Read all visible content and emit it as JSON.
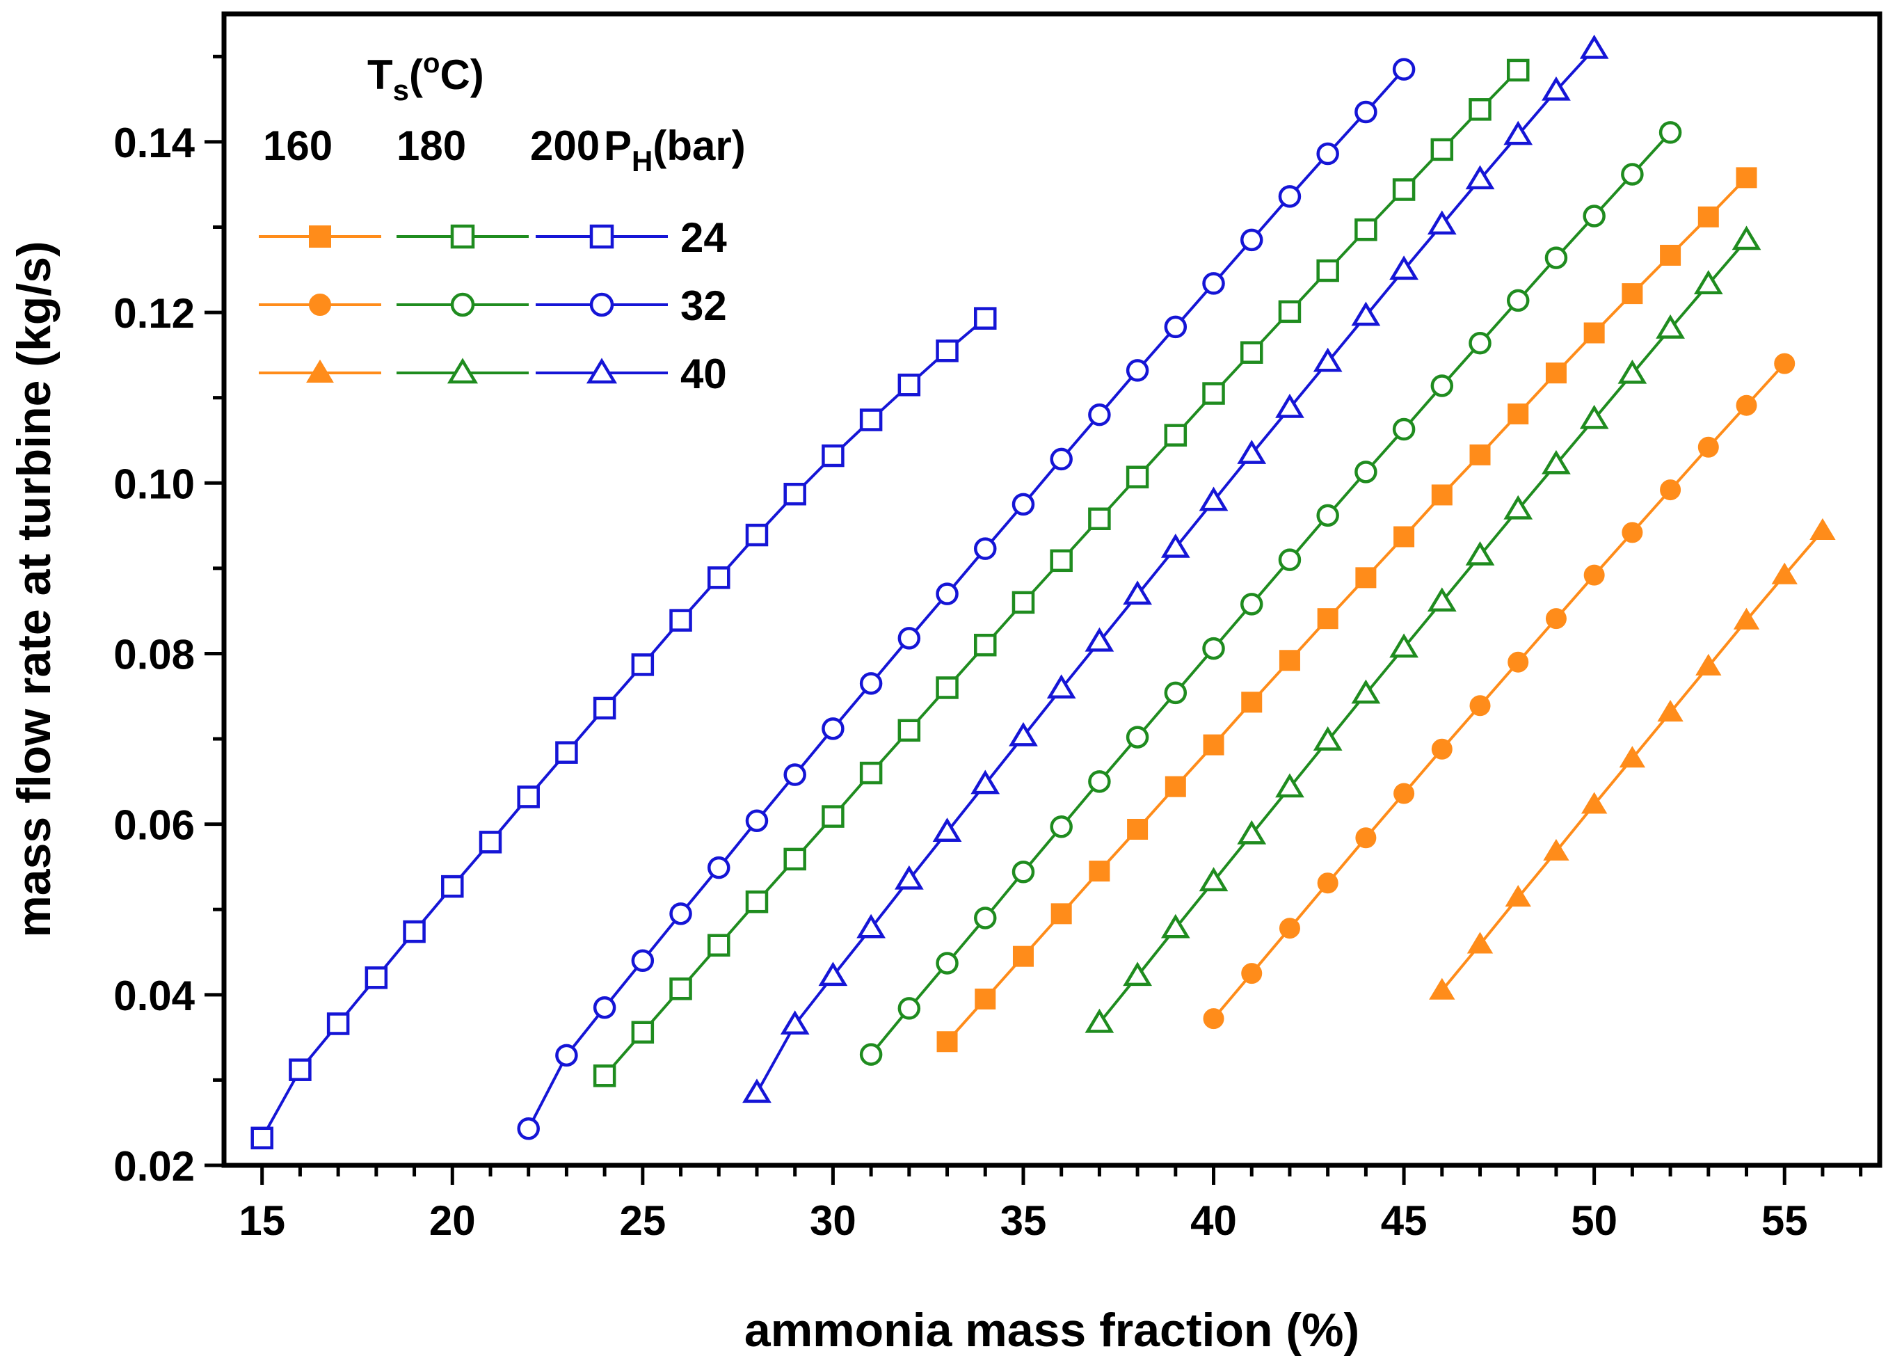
{
  "chart_data": {
    "type": "line",
    "title": "",
    "xlabel": "ammonia mass fraction (%)",
    "ylabel": "mass flow rate at turbine (kg/s)",
    "xlim": [
      14,
      57.5
    ],
    "ylim": [
      0.02,
      0.155
    ],
    "x_ticks": [
      15,
      20,
      25,
      30,
      35,
      40,
      45,
      50,
      55
    ],
    "x_tick_labels": [
      "15",
      "20",
      "25",
      "30",
      "35",
      "40",
      "45",
      "50",
      "55"
    ],
    "y_ticks": [
      0.02,
      0.04,
      0.06,
      0.08,
      0.1,
      0.12,
      0.14
    ],
    "y_tick_labels": [
      "0.02",
      "0.04",
      "0.06",
      "0.08",
      "0.10",
      "0.12",
      "0.14"
    ],
    "grid": false,
    "legend": {
      "placement": "top-left",
      "group_title_main": "T",
      "group_title_sub": "s",
      "group_title_open": "(",
      "group_title_sup": "o",
      "group_title_close": "C)",
      "column_labels": [
        "160",
        "180",
        "200"
      ],
      "pressure_title_main": "P",
      "pressure_title_sub": "H",
      "pressure_title_rest": "(bar)",
      "row_labels": [
        "24",
        "32",
        "40"
      ]
    },
    "colors": {
      "160": "#ff8c1a",
      "180": "#1f8c1f",
      "200": "#1515d6"
    },
    "series": [
      {
        "name": "Ts=160, PH=24",
        "temperature": "160",
        "pressure": "24",
        "marker": "square-filled",
        "x": [
          33,
          34,
          35,
          36,
          37,
          38,
          39,
          40,
          41,
          42,
          43,
          44,
          45,
          46,
          47,
          48,
          49,
          50,
          51,
          52,
          53,
          54
        ],
        "values": [
          0.0345,
          0.0395,
          0.0445,
          0.0495,
          0.0545,
          0.0594,
          0.0644,
          0.0693,
          0.0743,
          0.0792,
          0.0841,
          0.0889,
          0.0937,
          0.0986,
          0.1033,
          0.1081,
          0.1129,
          0.1176,
          0.1222,
          0.1267,
          0.1312,
          0.1358
        ]
      },
      {
        "name": "Ts=160, PH=32",
        "temperature": "160",
        "pressure": "32",
        "marker": "circle-filled",
        "x": [
          40,
          41,
          42,
          43,
          44,
          45,
          46,
          47,
          48,
          49,
          50,
          51,
          52,
          53,
          54,
          55
        ],
        "values": [
          0.0372,
          0.0425,
          0.0478,
          0.0531,
          0.0584,
          0.0636,
          0.0688,
          0.0739,
          0.079,
          0.0841,
          0.0892,
          0.0942,
          0.0992,
          0.1042,
          0.1091,
          0.114
        ]
      },
      {
        "name": "Ts=160, PH=40",
        "temperature": "160",
        "pressure": "40",
        "marker": "triangle-filled",
        "x": [
          46,
          47,
          48,
          49,
          50,
          51,
          52,
          53,
          54,
          55,
          56
        ],
        "values": [
          0.0405,
          0.0459,
          0.0514,
          0.0568,
          0.0623,
          0.0677,
          0.0731,
          0.0785,
          0.0839,
          0.0892,
          0.0944
        ]
      },
      {
        "name": "Ts=180, PH=24",
        "temperature": "180",
        "pressure": "24",
        "marker": "square-open",
        "x": [
          24,
          25,
          26,
          27,
          28,
          29,
          30,
          31,
          32,
          33,
          34,
          35,
          36,
          37,
          38,
          39,
          40,
          41,
          42,
          43,
          44,
          45,
          46,
          47,
          48
        ],
        "values": [
          0.0305,
          0.0356,
          0.0407,
          0.0458,
          0.0509,
          0.0559,
          0.0609,
          0.066,
          0.071,
          0.076,
          0.081,
          0.086,
          0.0909,
          0.0958,
          0.1007,
          0.1056,
          0.1105,
          0.1153,
          0.1201,
          0.1249,
          0.1297,
          0.1344,
          0.1391,
          0.1438,
          0.1484
        ]
      },
      {
        "name": "Ts=180, PH=32",
        "temperature": "180",
        "pressure": "32",
        "marker": "circle-open",
        "x": [
          31,
          32,
          33,
          34,
          35,
          36,
          37,
          38,
          39,
          40,
          41,
          42,
          43,
          44,
          45,
          46,
          47,
          48,
          49,
          50,
          51,
          52
        ],
        "values": [
          0.033,
          0.0384,
          0.0437,
          0.049,
          0.0544,
          0.0597,
          0.065,
          0.0702,
          0.0754,
          0.0806,
          0.0858,
          0.091,
          0.0962,
          0.1013,
          0.1063,
          0.1114,
          0.1164,
          0.1214,
          0.1264,
          0.1313,
          0.1362,
          0.1411
        ]
      },
      {
        "name": "Ts=180, PH=40",
        "temperature": "180",
        "pressure": "40",
        "marker": "triangle-open",
        "x": [
          37,
          38,
          39,
          40,
          41,
          42,
          43,
          44,
          45,
          46,
          47,
          48,
          49,
          50,
          51,
          52,
          53,
          54
        ],
        "values": [
          0.0367,
          0.0422,
          0.0478,
          0.0533,
          0.0588,
          0.0643,
          0.0698,
          0.0753,
          0.0807,
          0.0861,
          0.0915,
          0.0969,
          0.1022,
          0.1075,
          0.1128,
          0.1181,
          0.1233,
          0.1285
        ]
      },
      {
        "name": "Ts=200, PH=24",
        "temperature": "200",
        "pressure": "24",
        "marker": "square-open",
        "x": [
          15,
          16,
          17,
          18,
          19,
          20,
          21,
          22,
          23,
          24,
          25,
          26,
          27,
          28,
          29,
          30,
          31,
          32,
          33,
          34
        ],
        "values": [
          0.0232,
          0.0312,
          0.0366,
          0.042,
          0.0474,
          0.0527,
          0.0579,
          0.0632,
          0.0684,
          0.0736,
          0.0787,
          0.0839,
          0.0889,
          0.0939,
          0.0987,
          0.1032,
          0.1074,
          0.1115,
          0.1155,
          0.1193
        ]
      },
      {
        "name": "Ts=200, PH=32",
        "temperature": "200",
        "pressure": "32",
        "marker": "circle-open",
        "x": [
          22,
          23,
          24,
          25,
          26,
          27,
          28,
          29,
          30,
          31,
          32,
          33,
          34,
          35,
          36,
          37,
          38,
          39,
          40,
          41,
          42,
          43,
          44,
          45
        ],
        "values": [
          0.0243,
          0.0329,
          0.0385,
          0.044,
          0.0495,
          0.0549,
          0.0604,
          0.0658,
          0.0712,
          0.0765,
          0.0818,
          0.087,
          0.0923,
          0.0975,
          0.1028,
          0.108,
          0.1132,
          0.1183,
          0.1234,
          0.1285,
          0.1336,
          0.1386,
          0.1435,
          0.1485
        ]
      },
      {
        "name": "Ts=200, PH=40",
        "temperature": "200",
        "pressure": "40",
        "marker": "triangle-open",
        "x": [
          28,
          29,
          30,
          31,
          32,
          33,
          34,
          35,
          36,
          37,
          38,
          39,
          40,
          41,
          42,
          43,
          44,
          45,
          46,
          47,
          48,
          49,
          50
        ],
        "values": [
          0.0285,
          0.0365,
          0.0422,
          0.0478,
          0.0535,
          0.0591,
          0.0647,
          0.0703,
          0.0759,
          0.0814,
          0.0869,
          0.0924,
          0.0979,
          0.1034,
          0.1088,
          0.1142,
          0.1196,
          0.125,
          0.1303,
          0.1356,
          0.1408,
          0.146,
          0.1509
        ]
      }
    ]
  }
}
